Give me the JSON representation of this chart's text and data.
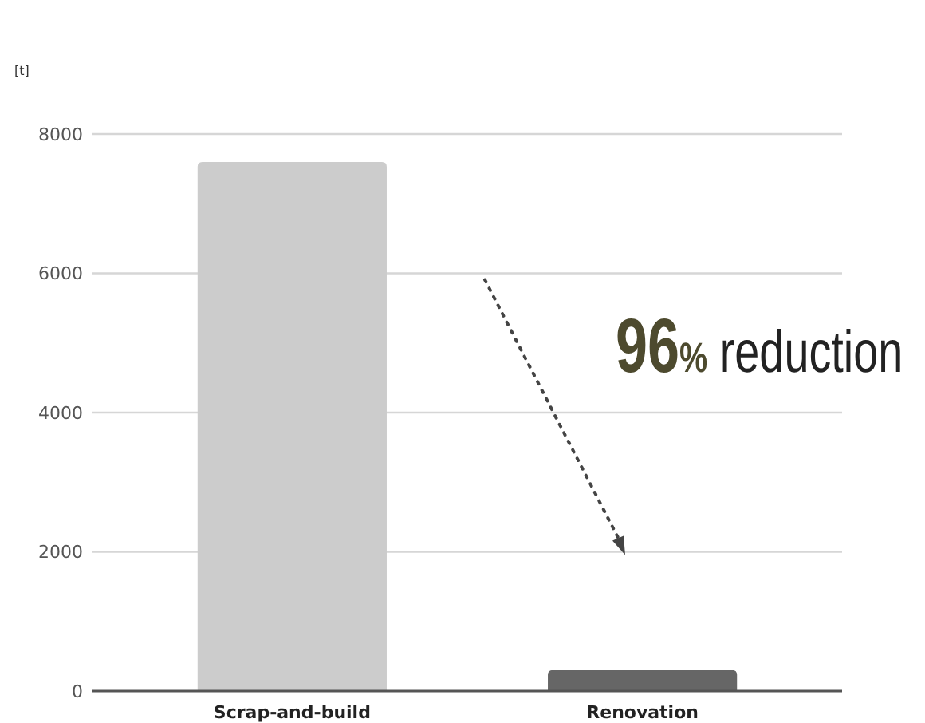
{
  "chart_data": {
    "type": "bar",
    "ylabel": "[t]",
    "categories": [
      "Scrap-and-build",
      "Renovation"
    ],
    "values": [
      7600,
      300
    ],
    "colors": [
      "#cccccc",
      "#666666"
    ],
    "ylim": [
      0,
      8000
    ],
    "yticks": [
      0,
      2000,
      4000,
      6000,
      8000
    ],
    "grid": "y",
    "annotations": [
      "96% reduction"
    ]
  }
}
